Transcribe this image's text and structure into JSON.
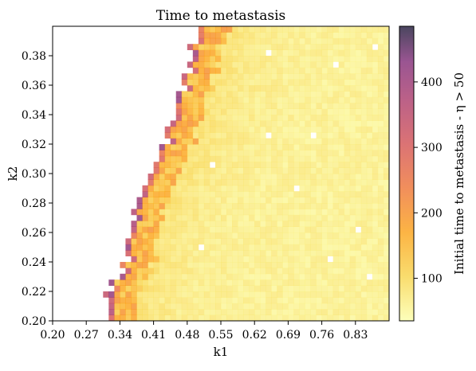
{
  "chart_data": {
    "type": "heatmap",
    "title": "Time to metastasis",
    "xlabel": "k1",
    "ylabel": "k2",
    "colorbar_label": "Initial time to metastasis - η > 50",
    "colormap": "inferno_r (alpha 0.75)",
    "xlim": [
      0.2,
      0.9
    ],
    "ylim": [
      0.2,
      0.4
    ],
    "x_ticks": [
      "0.20",
      "0.27",
      "0.34",
      "0.41",
      "0.48",
      "0.55",
      "0.62",
      "0.69",
      "0.76",
      "0.83"
    ],
    "y_ticks": [
      "0.20",
      "0.22",
      "0.24",
      "0.26",
      "0.28",
      "0.30",
      "0.32",
      "0.34",
      "0.36",
      "0.38"
    ],
    "colorbar_ticks": [
      "100",
      "200",
      "300",
      "400"
    ],
    "color_range": [
      35,
      485
    ],
    "grid": "off",
    "grid_size": {
      "nx": 60,
      "ny": 50
    },
    "boundary_profile": [
      {
        "k2": 0.2,
        "k1_edge": 0.31
      },
      {
        "k2": 0.22,
        "k1_edge": 0.32
      },
      {
        "k2": 0.24,
        "k1_edge": 0.35
      },
      {
        "k2": 0.26,
        "k1_edge": 0.36
      },
      {
        "k2": 0.28,
        "k1_edge": 0.38
      },
      {
        "k2": 0.3,
        "k1_edge": 0.41
      },
      {
        "k2": 0.32,
        "k1_edge": 0.43
      },
      {
        "k2": 0.34,
        "k1_edge": 0.45
      },
      {
        "k2": 0.36,
        "k1_edge": 0.47
      },
      {
        "k2": 0.38,
        "k1_edge": 0.49
      },
      {
        "k2": 0.4,
        "k1_edge": 0.5
      }
    ],
    "value_profile": {
      "at_boundary": 300,
      "near_boundary": 150,
      "far_field": 60
    }
  }
}
